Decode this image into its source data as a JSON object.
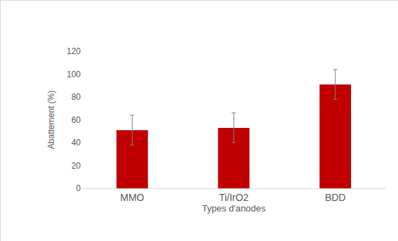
{
  "chart_data": {
    "type": "bar",
    "x_label": "Types d'anodes",
    "y_label": "Abattement (%)",
    "categories": [
      "MMO",
      "Ti/IrO2",
      "BDD"
    ],
    "values": [
      51,
      53,
      91
    ],
    "errors": [
      13,
      13,
      13
    ],
    "color": "#c00000",
    "ylim": [
      0,
      120
    ],
    "yticks": [
      0,
      20,
      40,
      60,
      80,
      100,
      120
    ],
    "grid": false
  }
}
